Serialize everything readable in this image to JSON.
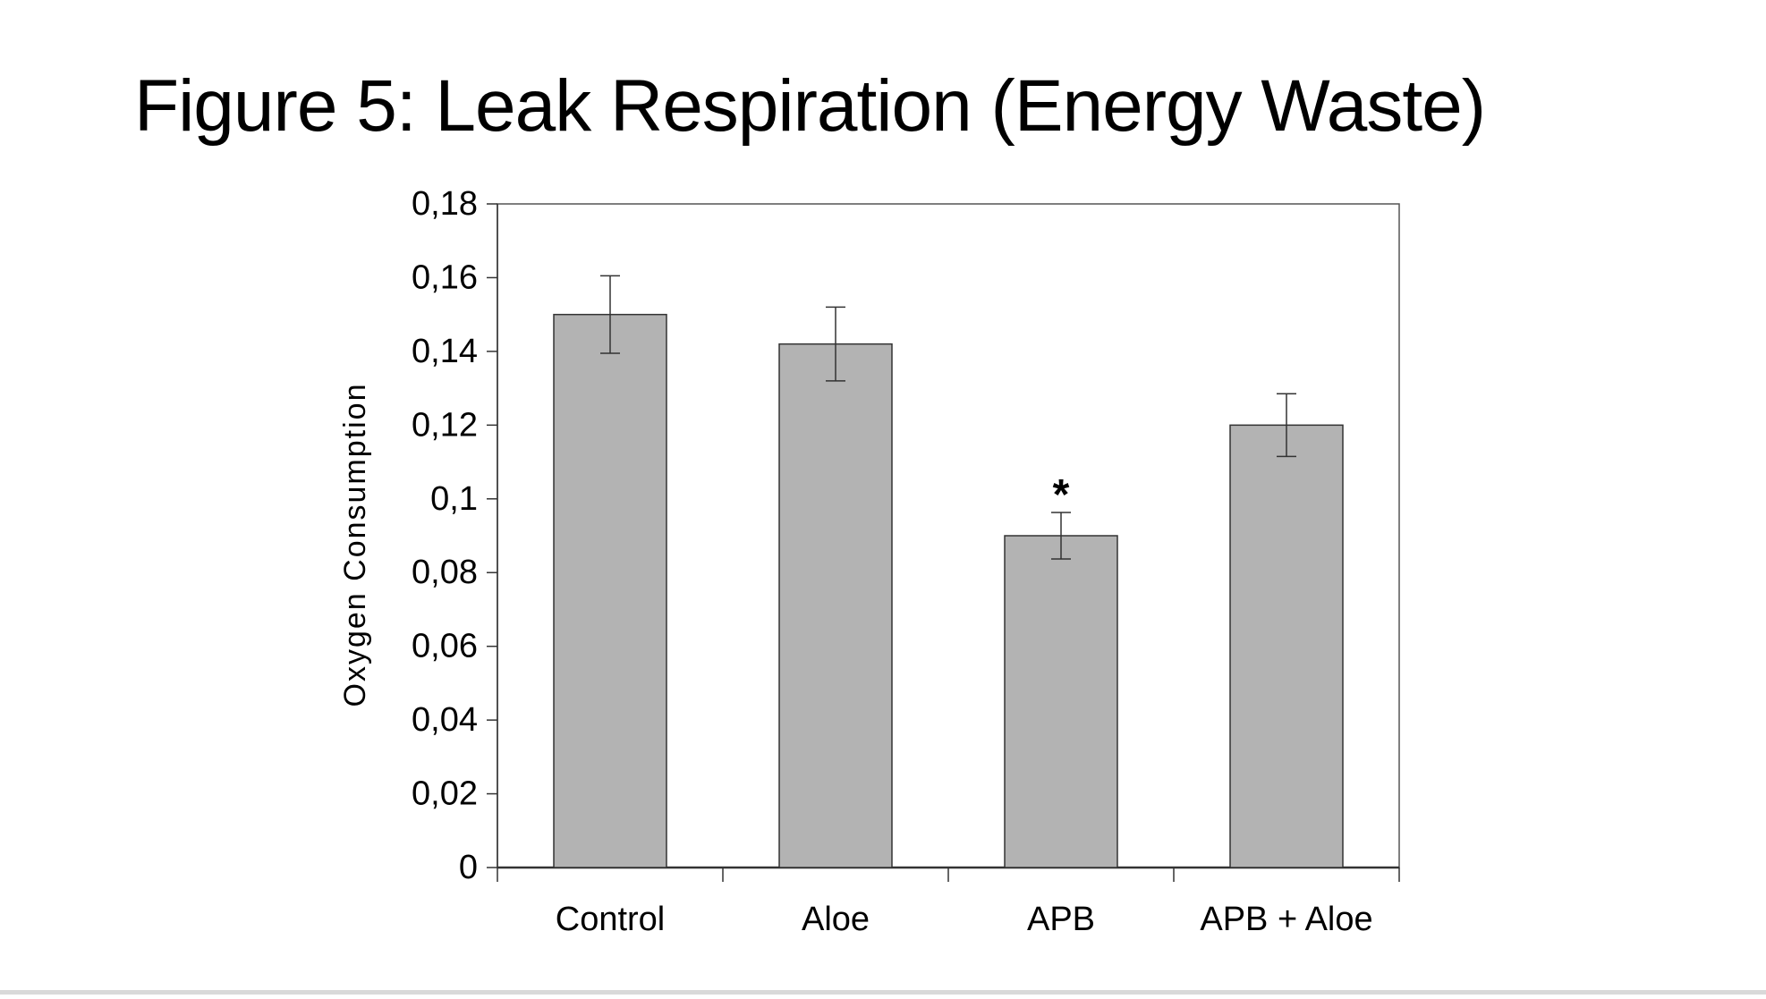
{
  "slide": {
    "title": "Figure 5: Leak Respiration (Energy Waste)"
  },
  "chart_data": {
    "type": "bar",
    "title": "",
    "xlabel": "",
    "ylabel": "Oxygen Consumption",
    "ylim": [
      0,
      0.18
    ],
    "yticks": [
      0,
      0.02,
      0.04,
      0.06,
      0.08,
      0.1,
      0.12,
      0.14,
      0.16,
      0.18
    ],
    "ytick_labels": [
      "0",
      "0,02",
      "0,04",
      "0,06",
      "0,08",
      "0,1",
      "0,12",
      "0,14",
      "0,16",
      "0,18"
    ],
    "categories": [
      "Control",
      "Aloe",
      "APB",
      "APB + Aloe"
    ],
    "values": [
      0.15,
      0.142,
      0.09,
      0.12
    ],
    "errors": [
      0.0105,
      0.01,
      0.0063,
      0.0085
    ],
    "annotations": [
      "",
      "",
      "*",
      ""
    ],
    "grid": false,
    "colors": {
      "bar_fill": "#b3b3b3",
      "bar_stroke": "#333333",
      "axis": "#333333",
      "frame": "#555555",
      "text": "#000000"
    }
  }
}
